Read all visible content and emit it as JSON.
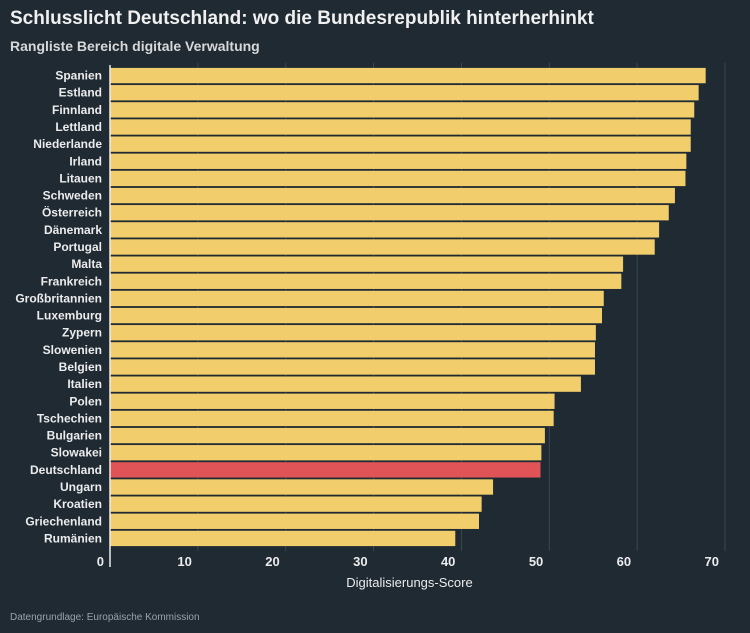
{
  "title": "Schlusslicht Deutschland: wo die Bundesrepublik hinterherhinkt",
  "subtitle": "Rangliste Bereich digitale Verwaltung",
  "source": "Datengrundlage: Europäische Kommission",
  "colors": {
    "background": "#1f2a33",
    "bar": "#f2cd6b",
    "highlight": "#e05457",
    "grid": "#3a4650"
  },
  "chart_data": {
    "type": "bar",
    "orientation": "horizontal",
    "title": "Schlusslicht Deutschland: wo die Bundesrepublik hinterherhinkt",
    "subtitle": "Rangliste Bereich digitale Verwaltung",
    "xlabel": "Digitalisierungs-Score",
    "ylabel": "",
    "xlim": [
      0,
      70
    ],
    "xticks": [
      0,
      10,
      20,
      30,
      40,
      50,
      60,
      70
    ],
    "grid": true,
    "highlight": "Deutschland",
    "categories": [
      "Spanien",
      "Estland",
      "Finnland",
      "Lettland",
      "Niederlande",
      "Irland",
      "Litauen",
      "Schweden",
      "Österreich",
      "Dänemark",
      "Portugal",
      "Malta",
      "Frankreich",
      "Großbritannien",
      "Luxemburg",
      "Zypern",
      "Slowenien",
      "Belgien",
      "Italien",
      "Polen",
      "Tschechien",
      "Bulgarien",
      "Slowakei",
      "Deutschland",
      "Ungarn",
      "Kroatien",
      "Griechenland",
      "Rumänien"
    ],
    "values": [
      67.8,
      67.0,
      66.5,
      66.1,
      66.1,
      65.6,
      65.5,
      64.3,
      63.6,
      62.5,
      62.0,
      58.4,
      58.2,
      56.2,
      56.0,
      55.3,
      55.2,
      55.2,
      53.6,
      50.6,
      50.5,
      49.5,
      49.1,
      49.0,
      43.6,
      42.3,
      42.0,
      39.3
    ]
  }
}
